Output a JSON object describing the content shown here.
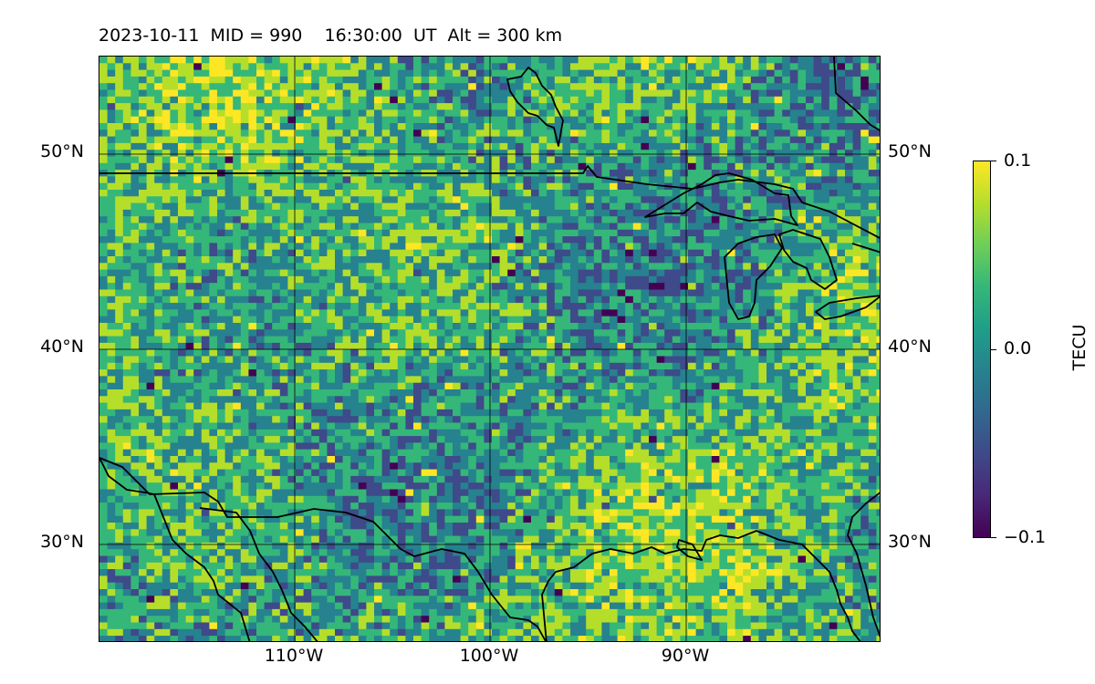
{
  "header": {
    "title": "2023-10-11  MID = 990    16:30:00  UT  Alt = 300 km"
  },
  "map": {
    "extent_lon": [
      -120,
      -80
    ],
    "extent_lat": [
      25,
      55
    ],
    "field_range": [
      -0.1,
      0.1
    ],
    "colormap": "viridis",
    "gridlines": true,
    "lat_labels": [
      "50°N",
      "40°N",
      "30°N"
    ],
    "lon_labels": [
      "110°W",
      "100°W",
      "90°W"
    ]
  },
  "colorbar": {
    "title": "TECU",
    "ticks": [
      "0.1",
      "0.0",
      "−0.1"
    ],
    "colors": [
      "#440154",
      "#3e4a89",
      "#26828e",
      "#35b779",
      "#b5de2b",
      "#fde725"
    ]
  }
}
